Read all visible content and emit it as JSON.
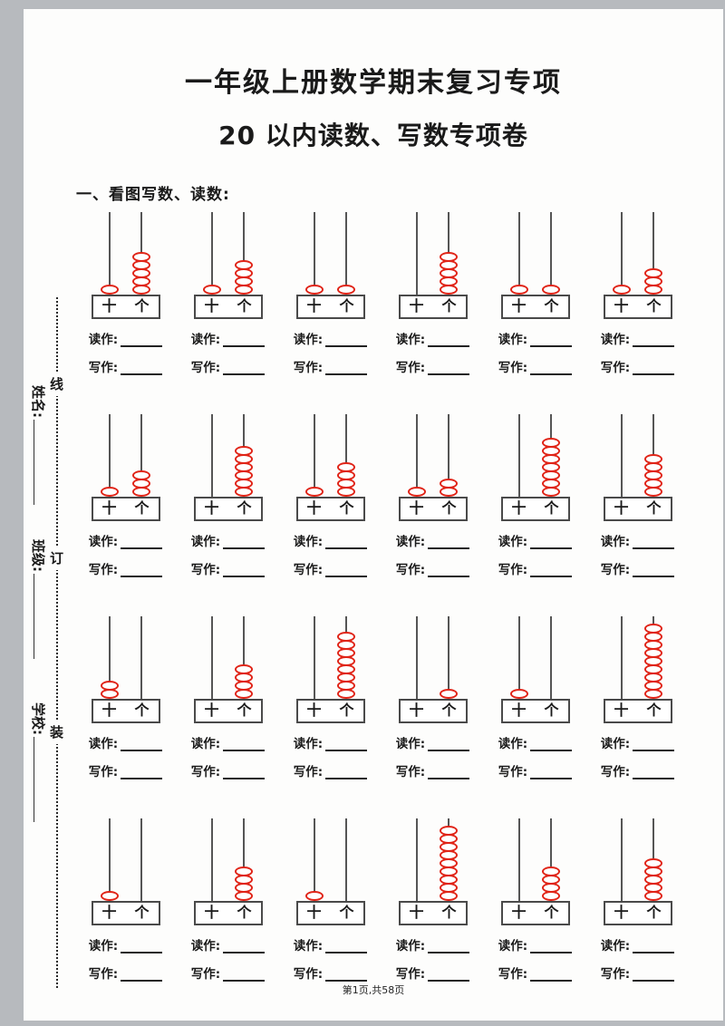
{
  "header": {
    "title_line1": "一年级上册数学期末复习专项",
    "title_line2": "20 以内读数、写数专项卷",
    "section_heading": "一、看图写数、读数:"
  },
  "binding_margin": {
    "name_label": "姓名:",
    "class_label": "班级:",
    "school_label": "学校:",
    "binding_chars": [
      "线",
      "订",
      "装"
    ]
  },
  "abacus_template": {
    "tens_label": "十",
    "ones_label": "个",
    "read_as_label": "读作:",
    "write_as_label": "写作:",
    "bead_color": "#e02417",
    "rod_color": "#555555"
  },
  "exercises": [
    {
      "tens": 1,
      "ones": 5
    },
    {
      "tens": 1,
      "ones": 4
    },
    {
      "tens": 1,
      "ones": 1
    },
    {
      "tens": 0,
      "ones": 5
    },
    {
      "tens": 1,
      "ones": 1
    },
    {
      "tens": 1,
      "ones": 3
    },
    {
      "tens": 1,
      "ones": 3
    },
    {
      "tens": 0,
      "ones": 6
    },
    {
      "tens": 1,
      "ones": 4
    },
    {
      "tens": 1,
      "ones": 2
    },
    {
      "tens": 0,
      "ones": 7
    },
    {
      "tens": 0,
      "ones": 5
    },
    {
      "tens": 2,
      "ones": 0
    },
    {
      "tens": 0,
      "ones": 4
    },
    {
      "tens": 0,
      "ones": 8
    },
    {
      "tens": 0,
      "ones": 1
    },
    {
      "tens": 1,
      "ones": 0
    },
    {
      "tens": 0,
      "ones": 9
    },
    {
      "tens": 1,
      "ones": 0
    },
    {
      "tens": 0,
      "ones": 4
    },
    {
      "tens": 1,
      "ones": 0
    },
    {
      "tens": 0,
      "ones": 9
    },
    {
      "tens": 0,
      "ones": 4
    },
    {
      "tens": 0,
      "ones": 5
    }
  ],
  "footer": {
    "page_indicator": "第1页,共58页"
  }
}
